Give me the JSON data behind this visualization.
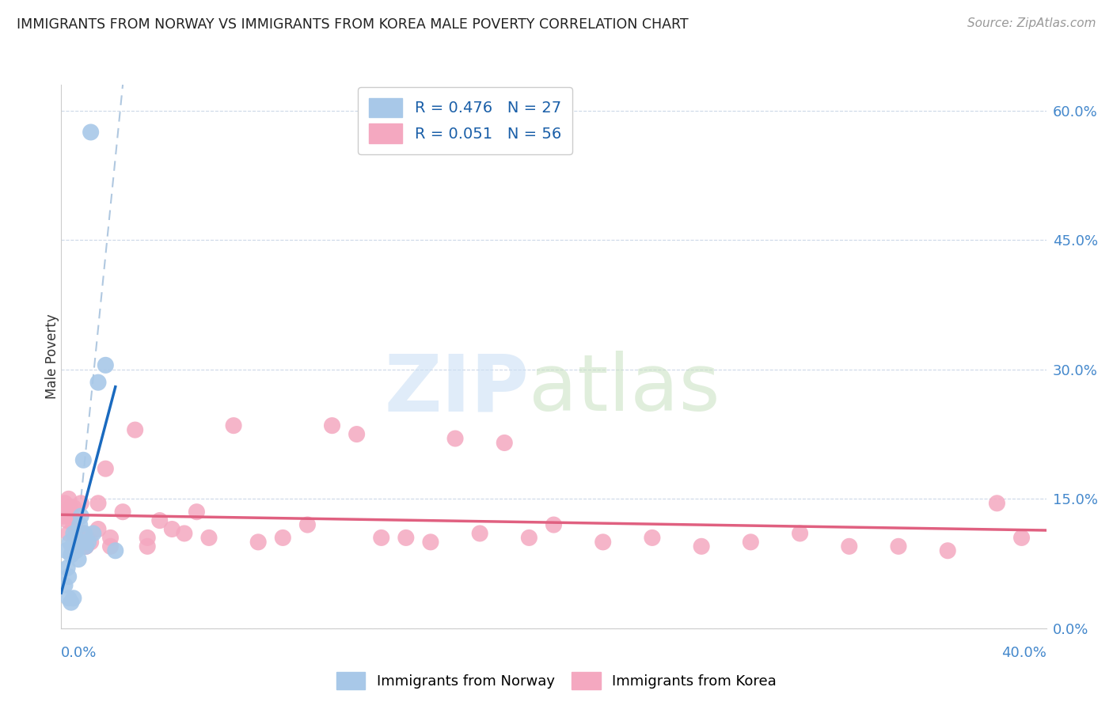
{
  "title": "IMMIGRANTS FROM NORWAY VS IMMIGRANTS FROM KOREA MALE POVERTY CORRELATION CHART",
  "source": "Source: ZipAtlas.com",
  "ylabel": "Male Poverty",
  "ytick_vals": [
    0.0,
    15.0,
    30.0,
    45.0,
    60.0
  ],
  "xlim": [
    0.0,
    40.0
  ],
  "ylim": [
    0.0,
    63.0
  ],
  "norway_color": "#a8c8e8",
  "korea_color": "#f4a8c0",
  "norway_line_color": "#1a6abf",
  "korea_line_color": "#e06080",
  "dashed_color": "#b0c8e0",
  "legend_norway_label": "R = 0.476   N = 27",
  "legend_korea_label": "R = 0.051   N = 56",
  "bottom_legend_norway": "Immigrants from Norway",
  "bottom_legend_korea": "Immigrants from Korea",
  "norway_x": [
    0.15,
    0.2,
    0.25,
    0.3,
    0.35,
    0.4,
    0.45,
    0.5,
    0.55,
    0.6,
    0.65,
    0.7,
    0.75,
    0.8,
    0.85,
    0.9,
    0.95,
    1.0,
    1.1,
    1.2,
    1.3,
    1.5,
    1.8,
    0.3,
    0.4,
    0.5,
    2.2
  ],
  "norway_y": [
    5.0,
    9.0,
    7.0,
    6.0,
    10.0,
    8.5,
    9.5,
    11.0,
    10.5,
    9.0,
    10.0,
    8.0,
    12.0,
    13.0,
    10.0,
    19.5,
    11.0,
    9.5,
    10.0,
    57.5,
    11.0,
    28.5,
    30.5,
    3.5,
    3.0,
    3.5,
    9.0
  ],
  "korea_x": [
    0.1,
    0.15,
    0.2,
    0.25,
    0.3,
    0.35,
    0.4,
    0.5,
    0.6,
    0.7,
    0.8,
    0.9,
    1.0,
    1.2,
    1.5,
    1.8,
    2.0,
    2.5,
    3.0,
    3.5,
    4.0,
    4.5,
    5.0,
    5.5,
    6.0,
    7.0,
    8.0,
    9.0,
    10.0,
    11.0,
    12.0,
    13.0,
    14.0,
    15.0,
    16.0,
    17.0,
    18.0,
    19.0,
    20.0,
    22.0,
    24.0,
    26.0,
    28.0,
    30.0,
    32.0,
    34.0,
    36.0,
    38.0,
    39.0,
    0.3,
    0.5,
    0.7,
    1.0,
    1.5,
    2.0,
    3.5
  ],
  "korea_y": [
    13.0,
    14.5,
    13.5,
    12.5,
    11.0,
    14.0,
    13.0,
    12.0,
    11.5,
    10.5,
    14.5,
    11.0,
    9.5,
    10.0,
    14.5,
    18.5,
    10.5,
    13.5,
    23.0,
    10.5,
    12.5,
    11.5,
    11.0,
    13.5,
    10.5,
    23.5,
    10.0,
    10.5,
    12.0,
    23.5,
    22.5,
    10.5,
    10.5,
    10.0,
    22.0,
    11.0,
    21.5,
    10.5,
    12.0,
    10.0,
    10.5,
    9.5,
    10.0,
    11.0,
    9.5,
    9.5,
    9.0,
    14.5,
    10.5,
    15.0,
    14.0,
    9.5,
    9.5,
    11.5,
    9.5,
    9.5
  ]
}
